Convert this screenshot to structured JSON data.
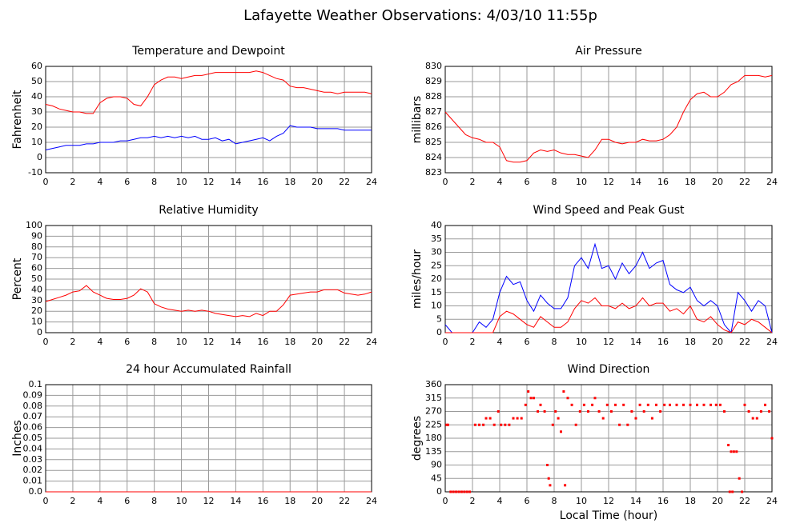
{
  "title": "Lafayette Weather Observations: 4/03/10 11:55p",
  "chart_data": [
    {
      "type": "line",
      "title": "Temperature and Dewpoint",
      "ylabel": "Fahrenheit",
      "x": [
        0,
        0.5,
        1,
        1.5,
        2,
        2.5,
        3,
        3.5,
        4,
        4.5,
        5,
        5.5,
        6,
        6.5,
        7,
        7.5,
        8,
        8.5,
        9,
        9.5,
        10,
        10.5,
        11,
        11.5,
        12,
        12.5,
        13,
        13.5,
        14,
        14.5,
        15,
        15.5,
        16,
        16.5,
        17,
        17.5,
        18,
        18.5,
        19,
        19.5,
        20,
        20.5,
        21,
        21.5,
        22,
        22.5,
        23,
        23.5,
        24
      ],
      "series": [
        {
          "color": "#ff0000",
          "values": [
            35,
            34,
            32,
            31,
            30,
            30,
            29,
            29,
            36,
            39,
            40,
            40,
            39,
            35,
            34,
            40,
            48,
            51,
            53,
            53,
            52,
            53,
            54,
            54,
            55,
            56,
            56,
            56,
            56,
            56,
            56,
            57,
            56,
            54,
            52,
            51,
            47,
            46,
            46,
            45,
            44,
            43,
            43,
            42,
            43,
            43,
            43,
            43,
            42
          ]
        },
        {
          "color": "#0000ff",
          "values": [
            5,
            6,
            7,
            8,
            8,
            8,
            9,
            9,
            10,
            10,
            10,
            11,
            11,
            12,
            13,
            13,
            14,
            13,
            14,
            13,
            14,
            13,
            14,
            12,
            12,
            13,
            11,
            12,
            9,
            10,
            11,
            12,
            13,
            11,
            14,
            16,
            21,
            20,
            20,
            20,
            19,
            19,
            19,
            19,
            18,
            18,
            18,
            18,
            18
          ]
        }
      ],
      "xlim": [
        0,
        24
      ],
      "xticks": [
        0,
        2,
        4,
        6,
        8,
        10,
        12,
        14,
        16,
        18,
        20,
        22,
        24
      ],
      "ylim": [
        -10,
        60
      ],
      "yticks": [
        -10,
        0,
        10,
        20,
        30,
        40,
        50,
        60
      ],
      "grid": true
    },
    {
      "type": "line",
      "title": "Air Pressure",
      "ylabel": "millibars",
      "x": [
        0,
        0.5,
        1,
        1.5,
        2,
        2.5,
        3,
        3.5,
        4,
        4.5,
        5,
        5.5,
        6,
        6.5,
        7,
        7.5,
        8,
        8.5,
        9,
        9.5,
        10,
        10.5,
        11,
        11.5,
        12,
        12.5,
        13,
        13.5,
        14,
        14.5,
        15,
        15.5,
        16,
        16.5,
        17,
        17.5,
        18,
        18.5,
        19,
        19.5,
        20,
        20.5,
        21,
        21.5,
        22,
        22.5,
        23,
        23.5,
        24
      ],
      "series": [
        {
          "color": "#ff0000",
          "values": [
            827,
            826.5,
            826,
            825.5,
            825.3,
            825.2,
            825,
            825,
            824.7,
            823.8,
            823.7,
            823.7,
            823.8,
            824.3,
            824.5,
            824.4,
            824.5,
            824.3,
            824.2,
            824.2,
            824.1,
            824,
            824.5,
            825.2,
            825.2,
            825,
            824.9,
            825,
            825,
            825.2,
            825.1,
            825.1,
            825.2,
            825.5,
            826,
            827,
            827.8,
            828.2,
            828.3,
            828,
            828,
            828.3,
            828.8,
            829,
            829.4,
            829.4,
            829.4,
            829.3,
            829.4
          ]
        }
      ],
      "xlim": [
        0,
        24
      ],
      "xticks": [
        0,
        2,
        4,
        6,
        8,
        10,
        12,
        14,
        16,
        18,
        20,
        22,
        24
      ],
      "ylim": [
        823,
        830
      ],
      "yticks": [
        823,
        824,
        825,
        826,
        827,
        828,
        829,
        830
      ],
      "grid": true
    },
    {
      "type": "line",
      "title": "Relative Humidity",
      "ylabel": "Percent",
      "x": [
        0,
        0.5,
        1,
        1.5,
        2,
        2.5,
        3,
        3.5,
        4,
        4.5,
        5,
        5.5,
        6,
        6.5,
        7,
        7.5,
        8,
        8.5,
        9,
        9.5,
        10,
        10.5,
        11,
        11.5,
        12,
        12.5,
        13,
        13.5,
        14,
        14.5,
        15,
        15.5,
        16,
        16.5,
        17,
        17.5,
        18,
        18.5,
        19,
        19.5,
        20,
        20.5,
        21,
        21.5,
        22,
        22.5,
        23,
        23.5,
        24
      ],
      "series": [
        {
          "color": "#ff0000",
          "values": [
            29,
            31,
            33,
            35,
            38,
            39,
            44,
            38,
            35,
            32,
            31,
            31,
            32,
            35,
            41,
            38,
            27,
            24,
            22,
            21,
            20,
            21,
            20,
            21,
            20,
            18,
            17,
            16,
            15,
            16,
            15,
            18,
            16,
            20,
            20,
            26,
            35,
            36,
            37,
            38,
            38,
            40,
            40,
            40,
            37,
            36,
            35,
            36,
            38
          ]
        }
      ],
      "xlim": [
        0,
        24
      ],
      "xticks": [
        0,
        2,
        4,
        6,
        8,
        10,
        12,
        14,
        16,
        18,
        20,
        22,
        24
      ],
      "ylim": [
        0,
        100
      ],
      "yticks": [
        0,
        10,
        20,
        30,
        40,
        50,
        60,
        70,
        80,
        90,
        100
      ],
      "grid": true
    },
    {
      "type": "line",
      "title": "Wind Speed and Peak Gust",
      "ylabel": "miles/hour",
      "x": [
        0,
        0.5,
        1,
        1.5,
        2,
        2.5,
        3,
        3.5,
        4,
        4.5,
        5,
        5.5,
        6,
        6.5,
        7,
        7.5,
        8,
        8.5,
        9,
        9.5,
        10,
        10.5,
        11,
        11.5,
        12,
        12.5,
        13,
        13.5,
        14,
        14.5,
        15,
        15.5,
        16,
        16.5,
        17,
        17.5,
        18,
        18.5,
        19,
        19.5,
        20,
        20.5,
        21,
        21.5,
        22,
        22.5,
        23,
        23.5,
        24
      ],
      "series": [
        {
          "color": "#0000ff",
          "values": [
            3,
            0,
            0,
            0,
            0,
            4,
            2,
            5,
            15,
            21,
            18,
            19,
            12,
            8,
            14,
            11,
            9,
            9,
            13,
            25,
            28,
            24,
            33,
            24,
            25,
            20,
            26,
            22,
            25,
            30,
            24,
            26,
            27,
            18,
            16,
            15,
            17,
            12,
            10,
            12,
            10,
            3,
            0,
            15,
            12,
            8,
            12,
            10,
            0
          ]
        },
        {
          "color": "#ff0000",
          "values": [
            0,
            0,
            0,
            0,
            0,
            0,
            0,
            0,
            6,
            8,
            7,
            5,
            3,
            2,
            6,
            4,
            2,
            2,
            4,
            9,
            12,
            11,
            13,
            10,
            10,
            9,
            11,
            9,
            10,
            13,
            10,
            11,
            11,
            8,
            9,
            7,
            10,
            5,
            4,
            6,
            3,
            1,
            0,
            4,
            3,
            5,
            4,
            2,
            0
          ]
        }
      ],
      "xlim": [
        0,
        24
      ],
      "xticks": [
        0,
        2,
        4,
        6,
        8,
        10,
        12,
        14,
        16,
        18,
        20,
        22,
        24
      ],
      "ylim": [
        0,
        40
      ],
      "yticks": [
        0,
        5,
        10,
        15,
        20,
        25,
        30,
        35,
        40
      ],
      "grid": true
    },
    {
      "type": "line",
      "title": "24 hour Accumulated Rainfall",
      "ylabel": "Inches",
      "x": [
        0,
        24
      ],
      "series": [
        {
          "color": "#ff0000",
          "values": [
            0,
            0
          ]
        }
      ],
      "xlim": [
        0,
        24
      ],
      "xticks": [
        0,
        2,
        4,
        6,
        8,
        10,
        12,
        14,
        16,
        18,
        20,
        22,
        24
      ],
      "ylim": [
        0,
        0.1
      ],
      "yticks": [
        {
          "value": 0,
          "label": "0.0"
        },
        0.01,
        0.02,
        0.03,
        0.04,
        0.05,
        0.06,
        0.07,
        0.08,
        0.09,
        0.1
      ],
      "grid": true
    },
    {
      "type": "scatter",
      "title": "Wind Direction",
      "ylabel": "degrees",
      "xlabel": "Local Time (hour)",
      "x": [
        0.1,
        0.2,
        0.4,
        0.6,
        0.8,
        1,
        1.2,
        1.4,
        1.6,
        1.8,
        2.2,
        2.5,
        2.8,
        3,
        3.3,
        3.6,
        3.9,
        4.1,
        4.4,
        4.7,
        5,
        5.3,
        5.6,
        5.9,
        6.1,
        6.3,
        6.5,
        6.8,
        7,
        7.3,
        7.5,
        7.6,
        7.7,
        7.9,
        8.1,
        8.3,
        8.5,
        8.7,
        8.8,
        9,
        9.3,
        9.6,
        9.9,
        10.2,
        10.5,
        10.8,
        11,
        11.3,
        11.6,
        11.9,
        12.2,
        12.5,
        12.8,
        13.1,
        13.4,
        13.7,
        14,
        14.3,
        14.6,
        14.9,
        15.2,
        15.5,
        15.8,
        16.1,
        16.5,
        17,
        17.5,
        18,
        18.5,
        19,
        19.5,
        19.9,
        20.2,
        20.5,
        20.8,
        20.9,
        21,
        21.1,
        21.2,
        21.4,
        21.6,
        21.8,
        22,
        22.3,
        22.6,
        22.9,
        23.2,
        23.5,
        23.8,
        24
      ],
      "series": [
        {
          "color": "#ff0000",
          "values": [
            225,
            225,
            0,
            0,
            0,
            0,
            0,
            0,
            0,
            0,
            225,
            225,
            225,
            247,
            247,
            225,
            270,
            225,
            225,
            225,
            247,
            247,
            247,
            292,
            337,
            315,
            315,
            270,
            292,
            270,
            90,
            45,
            22,
            225,
            270,
            247,
            202,
            337,
            22,
            315,
            292,
            225,
            270,
            292,
            270,
            292,
            315,
            270,
            247,
            292,
            270,
            292,
            225,
            292,
            225,
            270,
            247,
            292,
            270,
            292,
            247,
            292,
            270,
            292,
            292,
            292,
            292,
            292,
            292,
            292,
            292,
            292,
            292,
            270,
            157,
            0,
            135,
            0,
            135,
            135,
            45,
            0,
            292,
            270,
            247,
            247,
            270,
            292,
            270,
            180
          ]
        }
      ],
      "xlim": [
        0,
        24
      ],
      "xticks": [
        0,
        2,
        4,
        6,
        8,
        10,
        12,
        14,
        16,
        18,
        20,
        22,
        24
      ],
      "ylim": [
        0,
        360
      ],
      "yticks": [
        0,
        45,
        90,
        135,
        180,
        225,
        270,
        315,
        360
      ],
      "grid": true
    }
  ]
}
